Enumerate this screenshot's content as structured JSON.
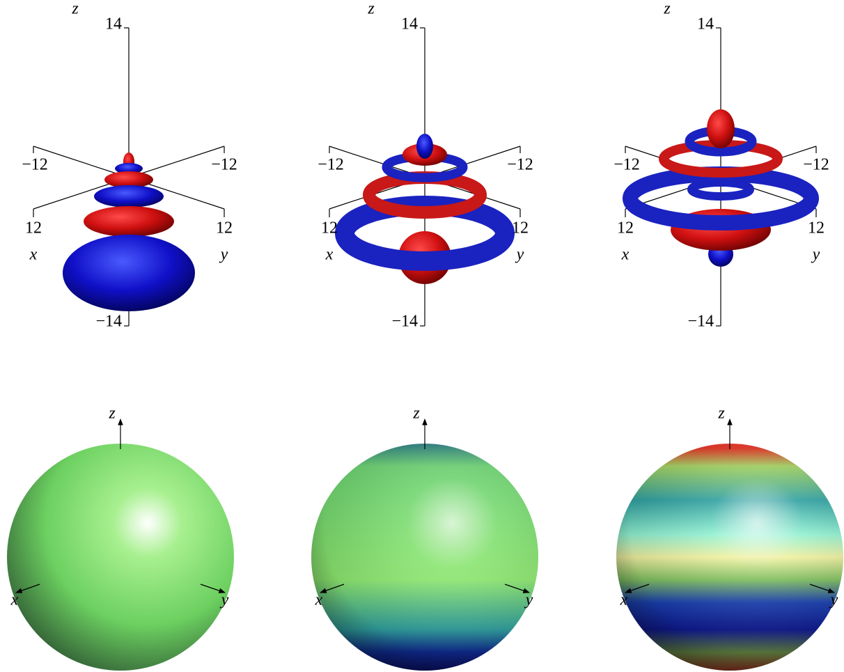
{
  "top_panels": [
    {
      "z": "z",
      "z_max": "14",
      "x_min": "−12",
      "y_min": "−12",
      "x_max": "12",
      "y_max": "12",
      "x": "x",
      "y": "y",
      "z_min": "−14"
    },
    {
      "z": "z",
      "z_max": "14",
      "x_min": "−12",
      "y_min": "−12",
      "x_max": "12",
      "y_max": "12",
      "x": "x",
      "y": "y",
      "z_min": "−14"
    },
    {
      "z": "z",
      "z_max": "14",
      "x_min": "−12",
      "y_min": "−12",
      "x_max": "12",
      "y_max": "12",
      "x": "x",
      "y": "y",
      "z_min": "−14"
    }
  ],
  "bottom_panels": [
    {
      "x": "x",
      "y": "y",
      "z": "z"
    },
    {
      "x": "x",
      "y": "y",
      "z": "z"
    },
    {
      "x": "x",
      "y": "y",
      "z": "z"
    }
  ]
}
